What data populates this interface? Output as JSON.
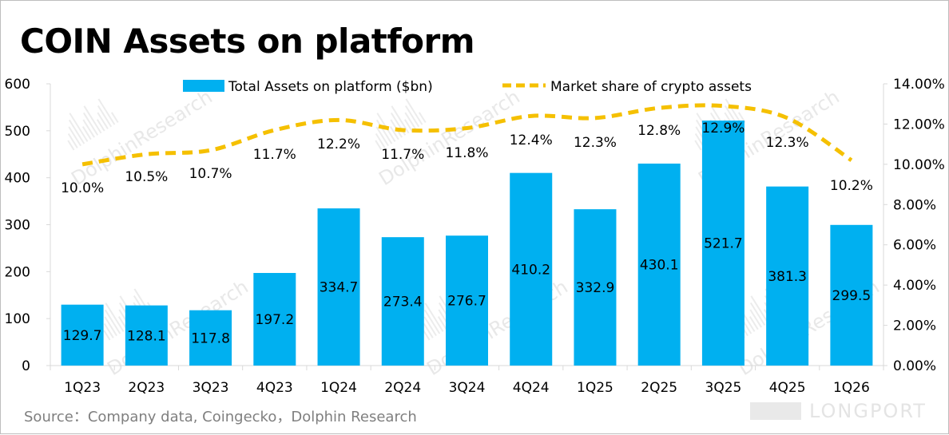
{
  "title": "COIN Assets on platform",
  "source": "Source：Company data, Coingecko，Dolphin Research",
  "watermarks": {
    "text": "DolphinResearch",
    "brand": "LONGPORT"
  },
  "colors": {
    "bar": "#00b0f0",
    "line": "#f5c000",
    "axis": "#d9d9d9",
    "text": "#000000",
    "source": "#7f7f7f"
  },
  "chart_data": {
    "type": "bar",
    "title": "COIN Assets on platform",
    "categories": [
      "1Q23",
      "2Q23",
      "3Q23",
      "4Q23",
      "1Q24",
      "2Q24",
      "3Q24",
      "4Q24",
      "1Q25",
      "2Q25",
      "3Q25",
      "4Q25",
      "1Q26"
    ],
    "series": [
      {
        "name": "Total Assets on platform ($bn)",
        "type": "bar",
        "axis": "left",
        "values": [
          129.7,
          128.1,
          117.8,
          197.2,
          334.7,
          273.4,
          276.7,
          410.2,
          332.9,
          430.1,
          521.7,
          381.3,
          299.5
        ],
        "labels": [
          "129.7",
          "128.1",
          "117.8",
          "197.2",
          "334.7",
          "273.4",
          "276.7",
          "410.2",
          "332.9",
          "430.1",
          "521.7",
          "381.3",
          "299.5"
        ]
      },
      {
        "name": "Market share of crypto assets",
        "type": "line",
        "style": "dashed",
        "axis": "right",
        "values": [
          10.0,
          10.5,
          10.7,
          11.7,
          12.2,
          11.7,
          11.8,
          12.4,
          12.3,
          12.8,
          12.9,
          12.3,
          10.2
        ],
        "labels": [
          "10.0%",
          "10.5%",
          "10.7%",
          "11.7%",
          "12.2%",
          "11.7%",
          "11.8%",
          "12.4%",
          "12.3%",
          "12.8%",
          "12.9%",
          "12.3%",
          "10.2%"
        ]
      }
    ],
    "y_left": {
      "range": [
        0,
        600
      ],
      "ticks": [
        "0",
        "100",
        "200",
        "300",
        "400",
        "500",
        "600"
      ]
    },
    "y_right": {
      "range": [
        0,
        14
      ],
      "ticks": [
        "0.00%",
        "2.00%",
        "4.00%",
        "6.00%",
        "8.00%",
        "10.00%",
        "12.00%",
        "14.00%"
      ]
    },
    "legend": {
      "position": "top",
      "items": [
        "Total Assets on platform ($bn)",
        "Market share of crypto assets"
      ]
    },
    "grid": false
  }
}
